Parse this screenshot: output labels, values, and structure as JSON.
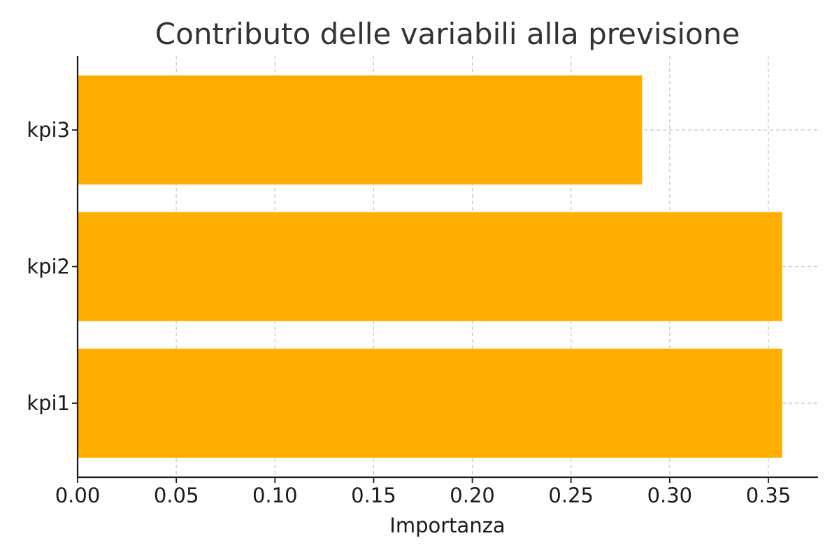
{
  "chart_data": {
    "type": "bar",
    "orientation": "horizontal",
    "title": "Contributo delle variabili alla previsione",
    "xlabel": "Importanza",
    "ylabel": "",
    "categories": [
      "kpi1",
      "kpi2",
      "kpi3"
    ],
    "values": [
      0.357,
      0.357,
      0.286
    ],
    "xlim": [
      0,
      0.375
    ],
    "xticks": [
      "0.00",
      "0.05",
      "0.10",
      "0.15",
      "0.20",
      "0.25",
      "0.30",
      "0.35"
    ],
    "xtick_values": [
      0,
      0.05,
      0.1,
      0.15,
      0.2,
      0.25,
      0.3,
      0.35
    ],
    "grid": true,
    "bar_color": "#FFAE00"
  }
}
